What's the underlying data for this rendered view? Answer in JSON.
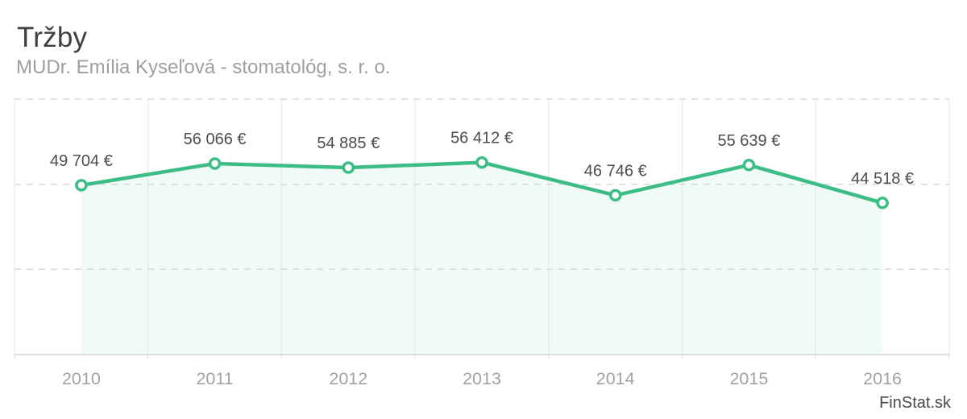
{
  "header": {
    "title": "Tržby",
    "subtitle": "MUDr. Emília Kyseľová - stomatológ, s. r. o."
  },
  "watermark": "FinStat.sk",
  "chart_data": {
    "type": "area",
    "title": "Tržby",
    "subtitle": "MUDr. Emília Kyseľová - stomatológ, s. r. o.",
    "categories": [
      "2010",
      "2011",
      "2012",
      "2013",
      "2014",
      "2015",
      "2016"
    ],
    "series": [
      {
        "name": "Tržby",
        "values": [
          49704,
          56066,
          54885,
          56412,
          46746,
          55639,
          44518
        ]
      }
    ],
    "point_labels": [
      "49 704 €",
      "56 066 €",
      "54 885 €",
      "56 412 €",
      "46 746 €",
      "55 639 €",
      "44 518 €"
    ],
    "xlabel": "",
    "ylabel": "",
    "ylim": [
      0,
      75000
    ],
    "grid_step": 25000,
    "grid": "on",
    "legend": "none",
    "colors": {
      "line": "#3dbd86",
      "area_fill": "rgba(61, 189, 134, 0.08)",
      "marker_fill": "#ffffff",
      "grid_h": "#d8d8d8",
      "grid_v": "#e5e5e5",
      "axis": "#d4d4d4",
      "tick": "#dedede",
      "point_label": "#4d4d4d",
      "year_label": "#a2a2a2"
    }
  }
}
